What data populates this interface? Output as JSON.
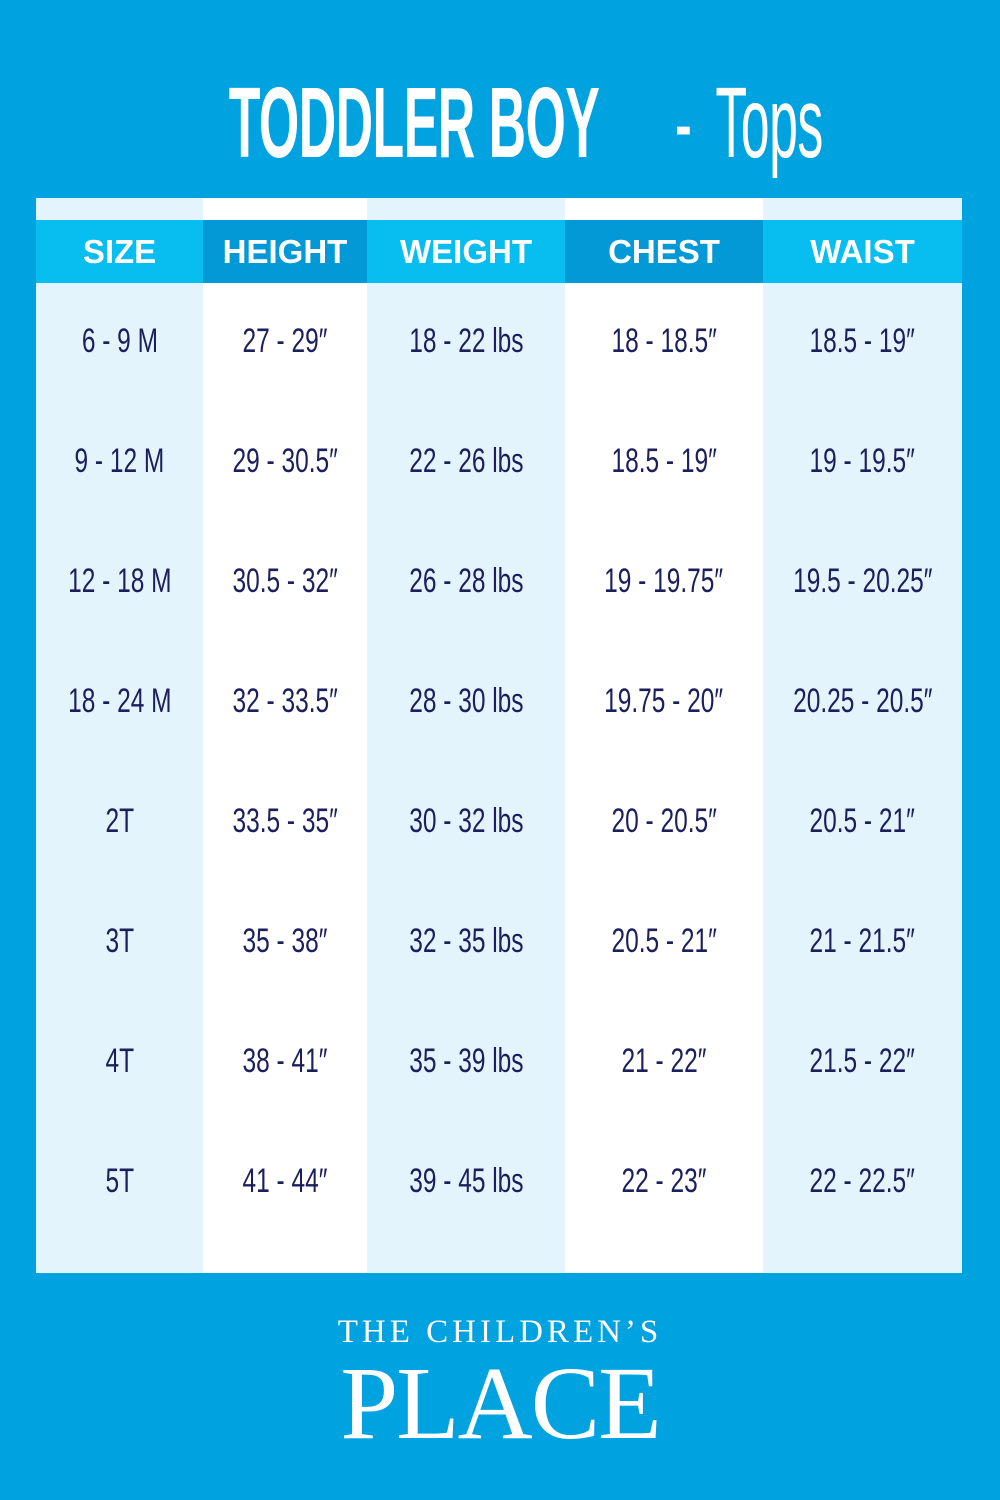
{
  "title": {
    "bold": "TODDLER BOY",
    "separator": " - ",
    "light": "Tops"
  },
  "colors": {
    "background": "#00a2e0",
    "header_light": "#08bdf0",
    "header_dark": "#0399d6",
    "column_tint": "#e3f4fc",
    "text": "#1b1f5c"
  },
  "table": {
    "headers": [
      "SIZE",
      "HEIGHT",
      "WEIGHT",
      "CHEST",
      "WAIST"
    ],
    "rows": [
      [
        "6 - 9 M",
        "27 - 29″",
        "18 - 22 lbs",
        "18 - 18.5″",
        "18.5 - 19″"
      ],
      [
        "9 - 12 M",
        "29 - 30.5″",
        "22 - 26 lbs",
        "18.5 - 19″",
        "19 - 19.5″"
      ],
      [
        "12  - 18 M",
        "30.5 - 32″",
        "26 - 28 lbs",
        "19 - 19.75″",
        "19.5 - 20.25″"
      ],
      [
        "18 - 24 M",
        "32 - 33.5″",
        "28 - 30 lbs",
        "19.75 - 20″",
        "20.25 - 20.5″"
      ],
      [
        "2T",
        "33.5 - 35″",
        "30 - 32 lbs",
        "20 - 20.5″",
        "20.5 - 21″"
      ],
      [
        "3T",
        "35 - 38″",
        "32 - 35 lbs",
        "20.5 - 21″",
        "21 - 21.5″"
      ],
      [
        "4T",
        "38 - 41″",
        "35 - 39 lbs",
        "21 - 22″",
        "21.5 - 22″"
      ],
      [
        "5T",
        "41 - 44″",
        "39 - 45 lbs",
        "22 - 23″",
        "22 - 22.5″"
      ]
    ]
  },
  "logo": {
    "line1": "THE CHILDREN’S",
    "line2": "PLACE"
  }
}
